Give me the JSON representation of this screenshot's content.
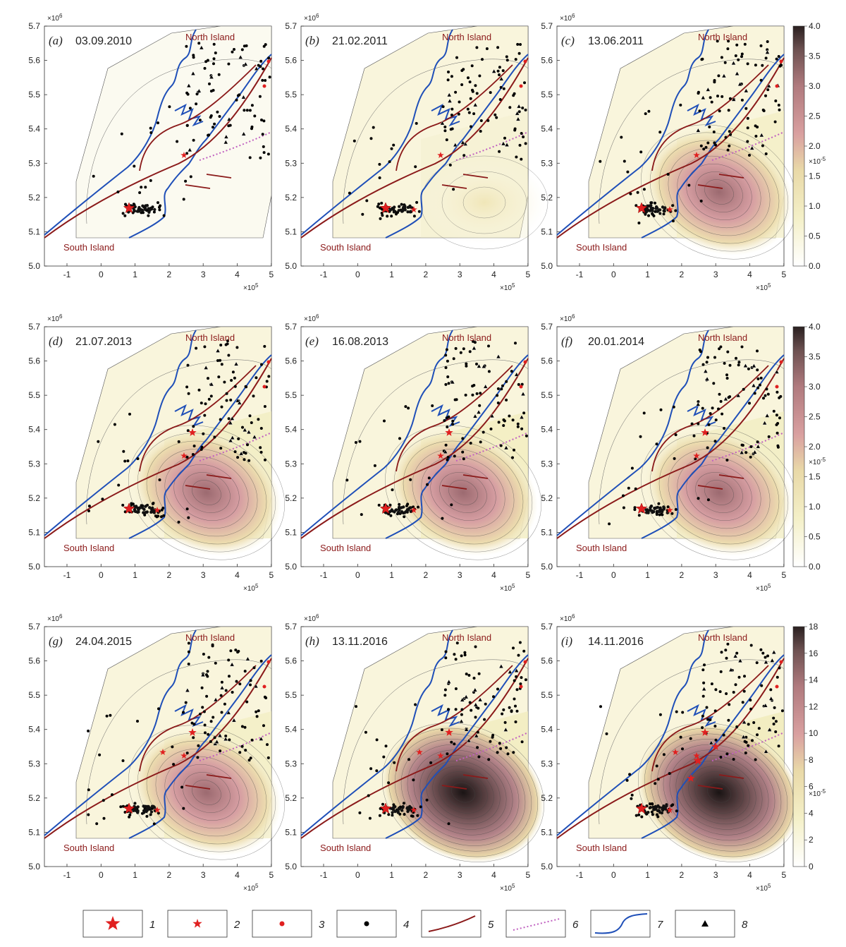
{
  "panels": [
    {
      "id": "a",
      "letter": "(a)",
      "date": "03.09.2010",
      "intensity": 0.05,
      "peak": 0.0
    },
    {
      "id": "b",
      "letter": "(b)",
      "date": "21.02.2011",
      "intensity": 0.25,
      "peak": 0.6
    },
    {
      "id": "c",
      "letter": "(c)",
      "date": "13.06.2011",
      "intensity": 0.6,
      "peak": 2.4
    },
    {
      "id": "d",
      "letter": "(d)",
      "date": "21.07.2013",
      "intensity": 0.7,
      "peak": 2.8
    },
    {
      "id": "e",
      "letter": "(e)",
      "date": "16.08.2013",
      "intensity": 0.75,
      "peak": 2.8
    },
    {
      "id": "f",
      "letter": "(f)",
      "date": "20.01.2014",
      "intensity": 0.7,
      "peak": 2.8
    },
    {
      "id": "g",
      "letter": "(g)",
      "date": "24.04.2015",
      "intensity": 0.65,
      "peak": 2.6
    },
    {
      "id": "h",
      "letter": "(h)",
      "date": "13.11.2016",
      "intensity": 0.8,
      "peak": 13
    },
    {
      "id": "i",
      "letter": "(i)",
      "date": "14.11.2016",
      "intensity": 1.0,
      "peak": 18
    }
  ],
  "labels": {
    "north_island": "North Island",
    "south_island": "South Island",
    "y_exponent": "×10",
    "y_exponent_power": "6",
    "x_exponent": "×10",
    "x_exponent_power": "5",
    "cb_exponent": "×10",
    "cb_exponent_power": "-5"
  },
  "axes": {
    "x_ticks": [
      "-1",
      "0",
      "1",
      "2",
      "3",
      "4",
      "5"
    ],
    "y_ticks": [
      "5.0",
      "5.1",
      "5.2",
      "5.3",
      "5.4",
      "5.5",
      "5.6",
      "5.7"
    ]
  },
  "colorbars": [
    {
      "row": 1,
      "ticks": [
        "4.0",
        "3.5",
        "3.0",
        "2.5",
        "2.0",
        "1.5",
        "1.0",
        "0.5",
        "0.0"
      ]
    },
    {
      "row": 2,
      "ticks": [
        "4.0",
        "3.5",
        "3.0",
        "2.5",
        "2.0",
        "1.5",
        "1.0",
        "0.5",
        "0.0"
      ]
    },
    {
      "row": 3,
      "ticks": [
        "18",
        "16",
        "14",
        "12",
        "10",
        "8",
        "6",
        "4",
        "2",
        "0"
      ]
    }
  ],
  "legend": [
    {
      "num": "1",
      "symbol": "large-star"
    },
    {
      "num": "2",
      "symbol": "small-star"
    },
    {
      "num": "3",
      "symbol": "red-dot"
    },
    {
      "num": "4",
      "symbol": "black-dot"
    },
    {
      "num": "5",
      "symbol": "fault-line"
    },
    {
      "num": "6",
      "symbol": "dotted-line"
    },
    {
      "num": "7",
      "symbol": "coastline"
    },
    {
      "num": "8",
      "symbol": "triangle"
    }
  ],
  "colors": {
    "coast": "#1f4fb8",
    "fault": "#8b1a1a",
    "dotted": "#c060c0",
    "star": "#e02020",
    "low": "#ffffff",
    "mid": "#f0eab0",
    "high": "#c87a86",
    "max": "#3a2a2a"
  }
}
